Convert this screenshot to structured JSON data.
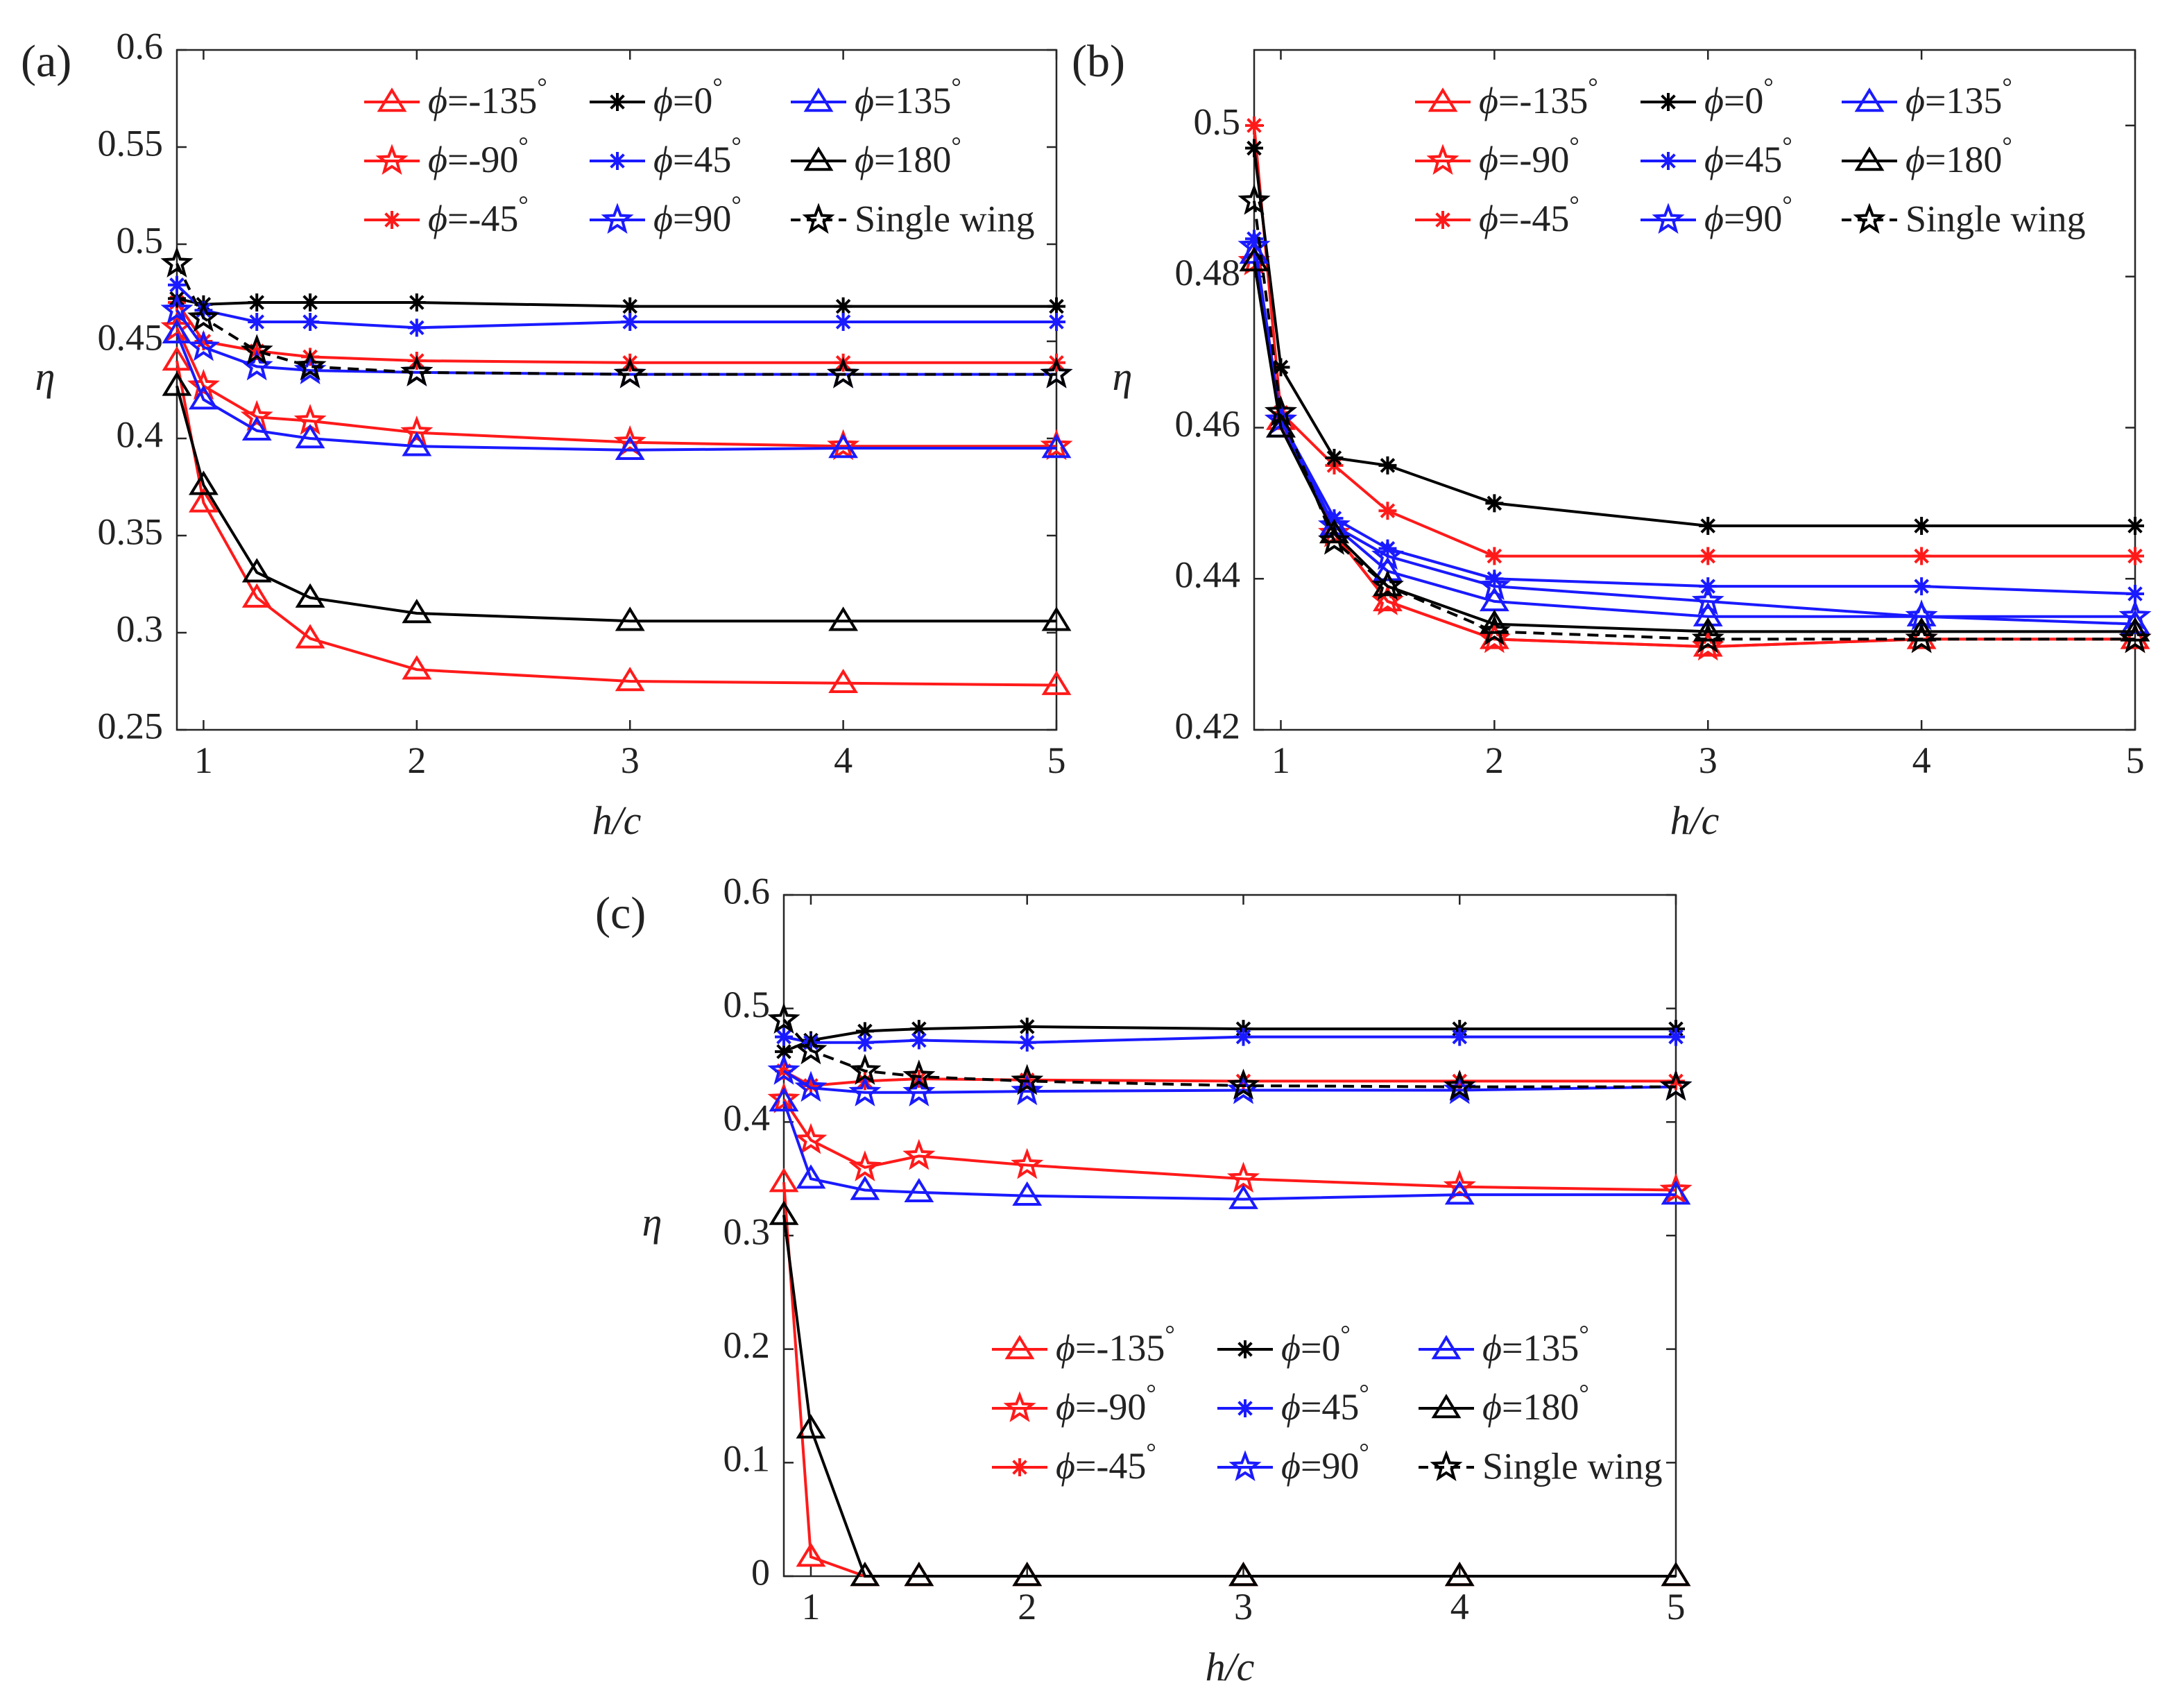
{
  "figure": {
    "legend_phi_symbol": "ϕ",
    "legend_degree_symbol": "°"
  },
  "colors": {
    "red": "#ff1a1a",
    "black": "#000000",
    "blue": "#1a1aff",
    "axis": "#262626"
  },
  "chart_data": [
    {
      "type": "line",
      "panel_label": "(a)",
      "xlabel": "h/c",
      "ylabel": "η",
      "xlim": [
        0.875,
        5
      ],
      "ylim": [
        0.25,
        0.6
      ],
      "xticks": [
        1,
        2,
        3,
        4,
        5
      ],
      "yticks": [
        0.25,
        0.3,
        0.35,
        0.4,
        0.45,
        0.5,
        0.55,
        0.6
      ],
      "yticklabels": [
        "0.25",
        "0.3",
        "0.35",
        "0.4",
        "0.45",
        "0.5",
        "0.55",
        "0.6"
      ],
      "grid": false,
      "legend_position": "top-right",
      "series": [
        {
          "name": "ϕ=-135°",
          "phi": "-135",
          "color": "red",
          "marker": "triangle",
          "dashed": false,
          "x": [
            0.875,
            1,
            1.25,
            1.5,
            2,
            3,
            4,
            5
          ],
          "values": [
            0.44,
            0.367,
            0.318,
            0.297,
            0.281,
            0.275,
            0.274,
            0.273
          ]
        },
        {
          "name": "ϕ=-90°",
          "phi": "-90",
          "color": "red",
          "marker": "star5",
          "dashed": false,
          "x": [
            0.875,
            1,
            1.25,
            1.5,
            2,
            3,
            4,
            5
          ],
          "values": [
            0.457,
            0.427,
            0.411,
            0.409,
            0.403,
            0.398,
            0.396,
            0.396
          ]
        },
        {
          "name": "ϕ=-45°",
          "phi": "-45",
          "color": "red",
          "marker": "asterisk",
          "dashed": false,
          "x": [
            0.875,
            1,
            1.25,
            1.5,
            2,
            3,
            4,
            5
          ],
          "values": [
            0.47,
            0.45,
            0.445,
            0.442,
            0.44,
            0.439,
            0.439,
            0.439
          ]
        },
        {
          "name": "ϕ=0°",
          "phi": "0",
          "color": "black",
          "marker": "asterisk",
          "dashed": false,
          "x": [
            0.875,
            1,
            1.25,
            1.5,
            2,
            3,
            4,
            5
          ],
          "values": [
            0.472,
            0.469,
            0.47,
            0.47,
            0.47,
            0.468,
            0.468,
            0.468
          ]
        },
        {
          "name": "ϕ=45°",
          "phi": "45",
          "color": "blue",
          "marker": "asterisk",
          "dashed": false,
          "x": [
            0.875,
            1,
            1.25,
            1.5,
            2,
            3,
            4,
            5
          ],
          "values": [
            0.479,
            0.466,
            0.46,
            0.46,
            0.457,
            0.46,
            0.46,
            0.46
          ]
        },
        {
          "name": "ϕ=90°",
          "phi": "90",
          "color": "blue",
          "marker": "star5",
          "dashed": false,
          "x": [
            0.875,
            1,
            1.25,
            1.5,
            2,
            3,
            4,
            5
          ],
          "values": [
            0.466,
            0.447,
            0.437,
            0.435,
            0.434,
            0.433,
            0.433,
            0.433
          ]
        },
        {
          "name": "ϕ=135°",
          "phi": "135",
          "color": "blue",
          "marker": "triangle",
          "dashed": false,
          "x": [
            0.875,
            1,
            1.25,
            1.5,
            2,
            3,
            4,
            5
          ],
          "values": [
            0.454,
            0.42,
            0.404,
            0.4,
            0.396,
            0.394,
            0.395,
            0.395
          ]
        },
        {
          "name": "ϕ=180°",
          "phi": "180",
          "color": "black",
          "marker": "triangle",
          "dashed": false,
          "x": [
            0.875,
            1,
            1.25,
            1.5,
            2,
            3,
            4,
            5
          ],
          "values": [
            0.427,
            0.376,
            0.331,
            0.318,
            0.31,
            0.306,
            0.306,
            0.306
          ]
        },
        {
          "name": "Single wing",
          "phi": "",
          "color": "black",
          "marker": "star5",
          "dashed": true,
          "x": [
            0.875,
            1,
            1.25,
            1.5,
            2,
            3,
            4,
            5
          ],
          "values": [
            0.49,
            0.462,
            0.445,
            0.437,
            0.434,
            0.433,
            0.433,
            0.433
          ]
        }
      ]
    },
    {
      "type": "line",
      "panel_label": "(b)",
      "xlabel": "h/c",
      "ylabel": "η",
      "xlim": [
        0.875,
        5
      ],
      "ylim": [
        0.42,
        0.51
      ],
      "xticks": [
        1,
        2,
        3,
        4,
        5
      ],
      "yticks": [
        0.42,
        0.44,
        0.46,
        0.48,
        0.5
      ],
      "yticklabels": [
        "0.42",
        "0.44",
        "0.46",
        "0.48",
        "0.5"
      ],
      "grid": false,
      "legend_position": "top-right",
      "series": [
        {
          "name": "ϕ=-135°",
          "phi": "-135",
          "color": "red",
          "marker": "triangle",
          "dashed": false,
          "x": [
            0.875,
            1,
            1.25,
            1.5,
            2,
            3,
            4,
            5
          ],
          "values": [
            0.482,
            0.461,
            0.446,
            0.437,
            0.432,
            0.431,
            0.432,
            0.432
          ]
        },
        {
          "name": "ϕ=-90°",
          "phi": "-90",
          "color": "red",
          "marker": "star5",
          "dashed": false,
          "x": [
            0.875,
            1,
            1.25,
            1.5,
            2,
            3,
            4,
            5
          ],
          "values": [
            0.482,
            0.461,
            0.446,
            0.437,
            0.432,
            0.431,
            0.432,
            0.432
          ]
        },
        {
          "name": "ϕ=-45°",
          "phi": "-45",
          "color": "red",
          "marker": "asterisk",
          "dashed": false,
          "x": [
            0.875,
            1,
            1.25,
            1.5,
            2,
            3,
            4,
            5
          ],
          "values": [
            0.5,
            0.462,
            0.455,
            0.449,
            0.443,
            0.443,
            0.443,
            0.443
          ]
        },
        {
          "name": "ϕ=0°",
          "phi": "0",
          "color": "black",
          "marker": "asterisk",
          "dashed": false,
          "x": [
            0.875,
            1,
            1.25,
            1.5,
            2,
            3,
            4,
            5
          ],
          "values": [
            0.497,
            0.468,
            0.456,
            0.455,
            0.45,
            0.447,
            0.447,
            0.447
          ]
        },
        {
          "name": "ϕ=45°",
          "phi": "45",
          "color": "blue",
          "marker": "asterisk",
          "dashed": false,
          "x": [
            0.875,
            1,
            1.25,
            1.5,
            2,
            3,
            4,
            5
          ],
          "values": [
            0.485,
            0.461,
            0.448,
            0.444,
            0.44,
            0.439,
            0.439,
            0.438
          ]
        },
        {
          "name": "ϕ=90°",
          "phi": "90",
          "color": "blue",
          "marker": "star5",
          "dashed": false,
          "x": [
            0.875,
            1,
            1.25,
            1.5,
            2,
            3,
            4,
            5
          ],
          "values": [
            0.484,
            0.461,
            0.447,
            0.443,
            0.439,
            0.437,
            0.435,
            0.435
          ]
        },
        {
          "name": "ϕ=135°",
          "phi": "135",
          "color": "blue",
          "marker": "triangle",
          "dashed": false,
          "x": [
            0.875,
            1,
            1.25,
            1.5,
            2,
            3,
            4,
            5
          ],
          "values": [
            0.483,
            0.46,
            0.447,
            0.441,
            0.437,
            0.435,
            0.435,
            0.434
          ]
        },
        {
          "name": "ϕ=180°",
          "phi": "180",
          "color": "black",
          "marker": "triangle",
          "dashed": false,
          "x": [
            0.875,
            1,
            1.25,
            1.5,
            2,
            3,
            4,
            5
          ],
          "values": [
            0.482,
            0.46,
            0.446,
            0.439,
            0.434,
            0.433,
            0.433,
            0.433
          ]
        },
        {
          "name": "Single wing",
          "phi": "",
          "color": "black",
          "marker": "star5",
          "dashed": true,
          "x": [
            0.875,
            1,
            1.25,
            1.5,
            2,
            3,
            4,
            5
          ],
          "values": [
            0.49,
            0.462,
            0.445,
            0.439,
            0.433,
            0.432,
            0.432,
            0.432
          ]
        }
      ]
    },
    {
      "type": "line",
      "panel_label": "(c)",
      "xlabel": "h/c",
      "ylabel": "η",
      "xlim": [
        0.875,
        5
      ],
      "ylim": [
        0,
        0.6
      ],
      "xticks": [
        1,
        2,
        3,
        4,
        5
      ],
      "yticks": [
        0,
        0.1,
        0.2,
        0.3,
        0.4,
        0.5,
        0.6
      ],
      "yticklabels": [
        "0",
        "0.1",
        "0.2",
        "0.3",
        "0.4",
        "0.5",
        "0.6"
      ],
      "grid": false,
      "legend_position": "bottom-right",
      "series": [
        {
          "name": "ϕ=-135°",
          "phi": "-135",
          "color": "red",
          "marker": "triangle",
          "dashed": false,
          "x": [
            0.875,
            1,
            1.25,
            1.5,
            2,
            3,
            4,
            5
          ],
          "values": [
            0.347,
            0.017,
            0,
            0,
            0,
            0,
            0,
            0
          ]
        },
        {
          "name": "ϕ=-90°",
          "phi": "-90",
          "color": "red",
          "marker": "star5",
          "dashed": false,
          "x": [
            0.875,
            1,
            1.25,
            1.5,
            2,
            3,
            4,
            5
          ],
          "values": [
            0.42,
            0.384,
            0.36,
            0.37,
            0.362,
            0.35,
            0.343,
            0.34
          ]
        },
        {
          "name": "ϕ=-45°",
          "phi": "-45",
          "color": "red",
          "marker": "asterisk",
          "dashed": false,
          "x": [
            0.875,
            1,
            1.25,
            1.5,
            2,
            3,
            4,
            5
          ],
          "values": [
            0.445,
            0.432,
            0.436,
            0.438,
            0.437,
            0.436,
            0.436,
            0.436
          ]
        },
        {
          "name": "ϕ=0°",
          "phi": "0",
          "color": "black",
          "marker": "asterisk",
          "dashed": false,
          "x": [
            0.875,
            1,
            1.25,
            1.5,
            2,
            3,
            4,
            5
          ],
          "values": [
            0.462,
            0.472,
            0.48,
            0.482,
            0.484,
            0.482,
            0.482,
            0.482
          ]
        },
        {
          "name": "ϕ=45°",
          "phi": "45",
          "color": "blue",
          "marker": "asterisk",
          "dashed": false,
          "x": [
            0.875,
            1,
            1.25,
            1.5,
            2,
            3,
            4,
            5
          ],
          "values": [
            0.475,
            0.47,
            0.47,
            0.472,
            0.47,
            0.475,
            0.475,
            0.475
          ]
        },
        {
          "name": "ϕ=90°",
          "phi": "90",
          "color": "blue",
          "marker": "star5",
          "dashed": false,
          "x": [
            0.875,
            1,
            1.25,
            1.5,
            2,
            3,
            4,
            5
          ],
          "values": [
            0.445,
            0.43,
            0.426,
            0.426,
            0.427,
            0.428,
            0.428,
            0.431
          ]
        },
        {
          "name": "ϕ=135°",
          "phi": "135",
          "color": "blue",
          "marker": "triangle",
          "dashed": false,
          "x": [
            0.875,
            1,
            1.25,
            1.5,
            2,
            3,
            4,
            5
          ],
          "values": [
            0.418,
            0.35,
            0.34,
            0.338,
            0.335,
            0.332,
            0.336,
            0.336
          ]
        },
        {
          "name": "ϕ=180°",
          "phi": "180",
          "color": "black",
          "marker": "triangle",
          "dashed": false,
          "x": [
            0.875,
            1,
            1.25,
            1.5,
            2,
            3,
            4,
            5
          ],
          "values": [
            0.318,
            0.13,
            0,
            0,
            0,
            0,
            0,
            0
          ]
        },
        {
          "name": "Single wing",
          "phi": "",
          "color": "black",
          "marker": "star5",
          "dashed": true,
          "x": [
            0.875,
            1,
            1.25,
            1.5,
            2,
            3,
            4,
            5
          ],
          "values": [
            0.49,
            0.463,
            0.445,
            0.44,
            0.436,
            0.432,
            0.431,
            0.431
          ]
        }
      ]
    }
  ]
}
